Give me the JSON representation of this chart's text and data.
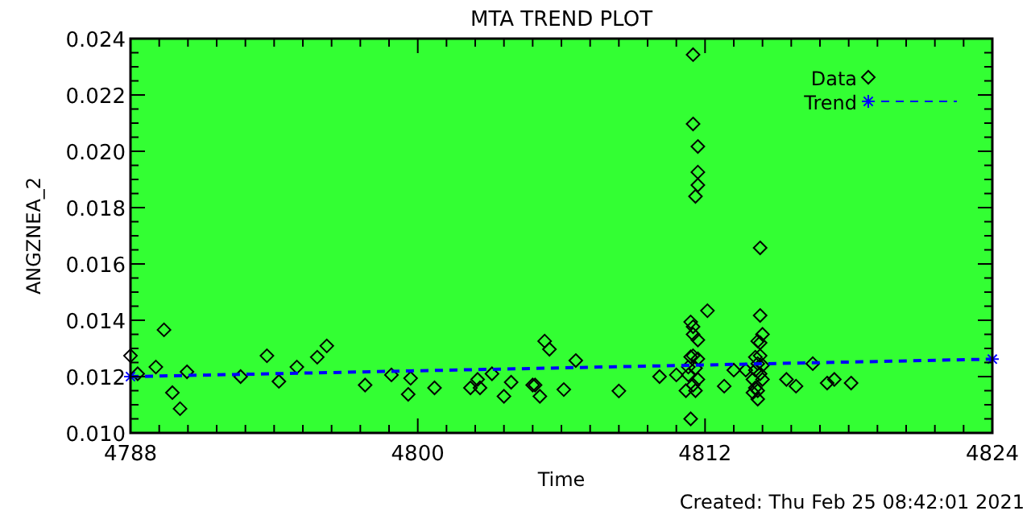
{
  "chart_data": {
    "type": "scatter",
    "title": "MTA TREND PLOT",
    "xlabel": "Time",
    "ylabel": "ANGZNEA_2",
    "annotations": [
      "Created: Thu Feb 25 08:42:01 2021"
    ],
    "xlim": [
      4788,
      4824
    ],
    "xticks": [
      4788,
      {
        "value": 4789.2,
        "label": null
      },
      {
        "value": 4790.4,
        "label": null
      },
      {
        "value": 4791.6,
        "label": null
      },
      {
        "value": 4792.8,
        "label": null
      },
      {
        "value": 4794,
        "label": null
      },
      {
        "value": 4795.2,
        "label": null
      },
      {
        "value": 4796.4,
        "label": null
      },
      {
        "value": 4797.6,
        "label": null
      },
      {
        "value": 4798.8,
        "label": null
      },
      4800,
      {
        "value": 4801.2,
        "label": null
      },
      {
        "value": 4802.4,
        "label": null
      },
      {
        "value": 4803.6,
        "label": null
      },
      {
        "value": 4804.8,
        "label": null
      },
      {
        "value": 4806,
        "label": null
      },
      {
        "value": 4807.2,
        "label": null
      },
      {
        "value": 4808.4,
        "label": null
      },
      {
        "value": 4809.6,
        "label": null
      },
      {
        "value": 4810.8,
        "label": null
      },
      4812,
      {
        "value": 4813.2,
        "label": null
      },
      {
        "value": 4814.4,
        "label": null
      },
      {
        "value": 4815.6,
        "label": null
      },
      {
        "value": 4816.8,
        "label": null
      },
      {
        "value": 4818,
        "label": null
      },
      {
        "value": 4819.2,
        "label": null
      },
      {
        "value": 4820.4,
        "label": null
      },
      {
        "value": 4821.6,
        "label": null
      },
      {
        "value": 4822.8,
        "label": null
      },
      4824
    ],
    "ylim": [
      0.01,
      0.024
    ],
    "yticks": [
      {
        "value": 0.01,
        "label": "0.010"
      },
      {
        "value": 0.0105,
        "label": null
      },
      {
        "value": 0.011,
        "label": null
      },
      {
        "value": 0.0115,
        "label": null
      },
      {
        "value": 0.012,
        "label": "0.012"
      },
      {
        "value": 0.0125,
        "label": null
      },
      {
        "value": 0.013,
        "label": null
      },
      {
        "value": 0.0135,
        "label": null
      },
      {
        "value": 0.014,
        "label": "0.014"
      },
      {
        "value": 0.0145,
        "label": null
      },
      {
        "value": 0.015,
        "label": null
      },
      {
        "value": 0.0155,
        "label": null
      },
      {
        "value": 0.016,
        "label": "0.016"
      },
      {
        "value": 0.0165,
        "label": null
      },
      {
        "value": 0.017,
        "label": null
      },
      {
        "value": 0.0175,
        "label": null
      },
      {
        "value": 0.018,
        "label": "0.018"
      },
      {
        "value": 0.0185,
        "label": null
      },
      {
        "value": 0.019,
        "label": null
      },
      {
        "value": 0.0195,
        "label": null
      },
      {
        "value": 0.02,
        "label": "0.020"
      },
      {
        "value": 0.0205,
        "label": null
      },
      {
        "value": 0.021,
        "label": null
      },
      {
        "value": 0.0215,
        "label": null
      },
      {
        "value": 0.022,
        "label": "0.022"
      },
      {
        "value": 0.0225,
        "label": null
      },
      {
        "value": 0.023,
        "label": null
      },
      {
        "value": 0.0235,
        "label": null
      },
      {
        "value": 0.024,
        "label": "0.024"
      }
    ],
    "grid": false,
    "legend": "top right",
    "series": [
      {
        "name": "Data",
        "marker": "diamond",
        "color": "#000000",
        "x": [
          4788.0,
          4788.3,
          4789.06,
          4789.4,
          4789.75,
          4790.07,
          4790.36,
          4792.6,
          4793.7,
          4794.2,
          4794.95,
          4795.8,
          4796.2,
          4797.8,
          4798.9,
          4799.6,
          4799.7,
          4800.7,
          4802.2,
          4802.5,
          4802.6,
          4803.1,
          4803.6,
          4803.9,
          4804.8,
          4805.3,
          4805.5,
          4804.9,
          4805.1,
          4806.1,
          4806.6,
          4808.4,
          4810.1,
          4810.8,
          4811.5,
          4811.5,
          4811.7,
          4811.7,
          4811.7,
          4811.6,
          4811.4,
          4811.5,
          4811.5,
          4811.7,
          4811.4,
          4811.5,
          4811.7,
          4811.3,
          4811.6,
          4811.3,
          4811.7,
          4811.5,
          4811.2,
          4811.6,
          4811.4,
          4812.1,
          4812.8,
          4813.2,
          4813.7,
          4814.3,
          4814.3,
          4814.4,
          4814.2,
          4814.3,
          4814.1,
          4814.3,
          4814.2,
          4814.4,
          4814.1,
          4814.3,
          4814.0,
          4814.4,
          4814.1,
          4814.2,
          4814.0,
          4814.2,
          4815.4,
          4815.8,
          4816.5,
          4817.1,
          4817.4,
          4818.1
        ],
        "values": [
          0.01274,
          0.0121,
          0.01234,
          0.01366,
          0.01143,
          0.01086,
          0.01217,
          0.012,
          0.01274,
          0.01183,
          0.01234,
          0.01269,
          0.01309,
          0.0117,
          0.01206,
          0.01137,
          0.01194,
          0.0116,
          0.0116,
          0.0119,
          0.0116,
          0.0121,
          0.0113,
          0.0118,
          0.0117,
          0.01326,
          0.01297,
          0.0117,
          0.0113,
          0.01154,
          0.01257,
          0.01149,
          0.012,
          0.01206,
          0.02343,
          0.02097,
          0.02017,
          0.01926,
          0.0188,
          0.0184,
          0.01394,
          0.01377,
          0.0135,
          0.0133,
          0.0127,
          0.01274,
          0.01263,
          0.01234,
          0.0123,
          0.01206,
          0.0119,
          0.0117,
          0.0115,
          0.0115,
          0.0105,
          0.01434,
          0.01166,
          0.01223,
          0.01223,
          0.01657,
          0.01417,
          0.0135,
          0.01326,
          0.0132,
          0.01269,
          0.01274,
          0.01246,
          0.0124,
          0.01223,
          0.0121,
          0.0119,
          0.0119,
          0.0116,
          0.0115,
          0.01143,
          0.0112,
          0.0119,
          0.01166,
          0.01246,
          0.01177,
          0.0119,
          0.01177
        ]
      },
      {
        "name": "Trend",
        "type": "line",
        "marker": "cross",
        "line_style": "dashed",
        "color": "#0000ff",
        "x": [
          4788,
          4824
        ],
        "values": [
          0.012,
          0.01262
        ]
      }
    ]
  }
}
